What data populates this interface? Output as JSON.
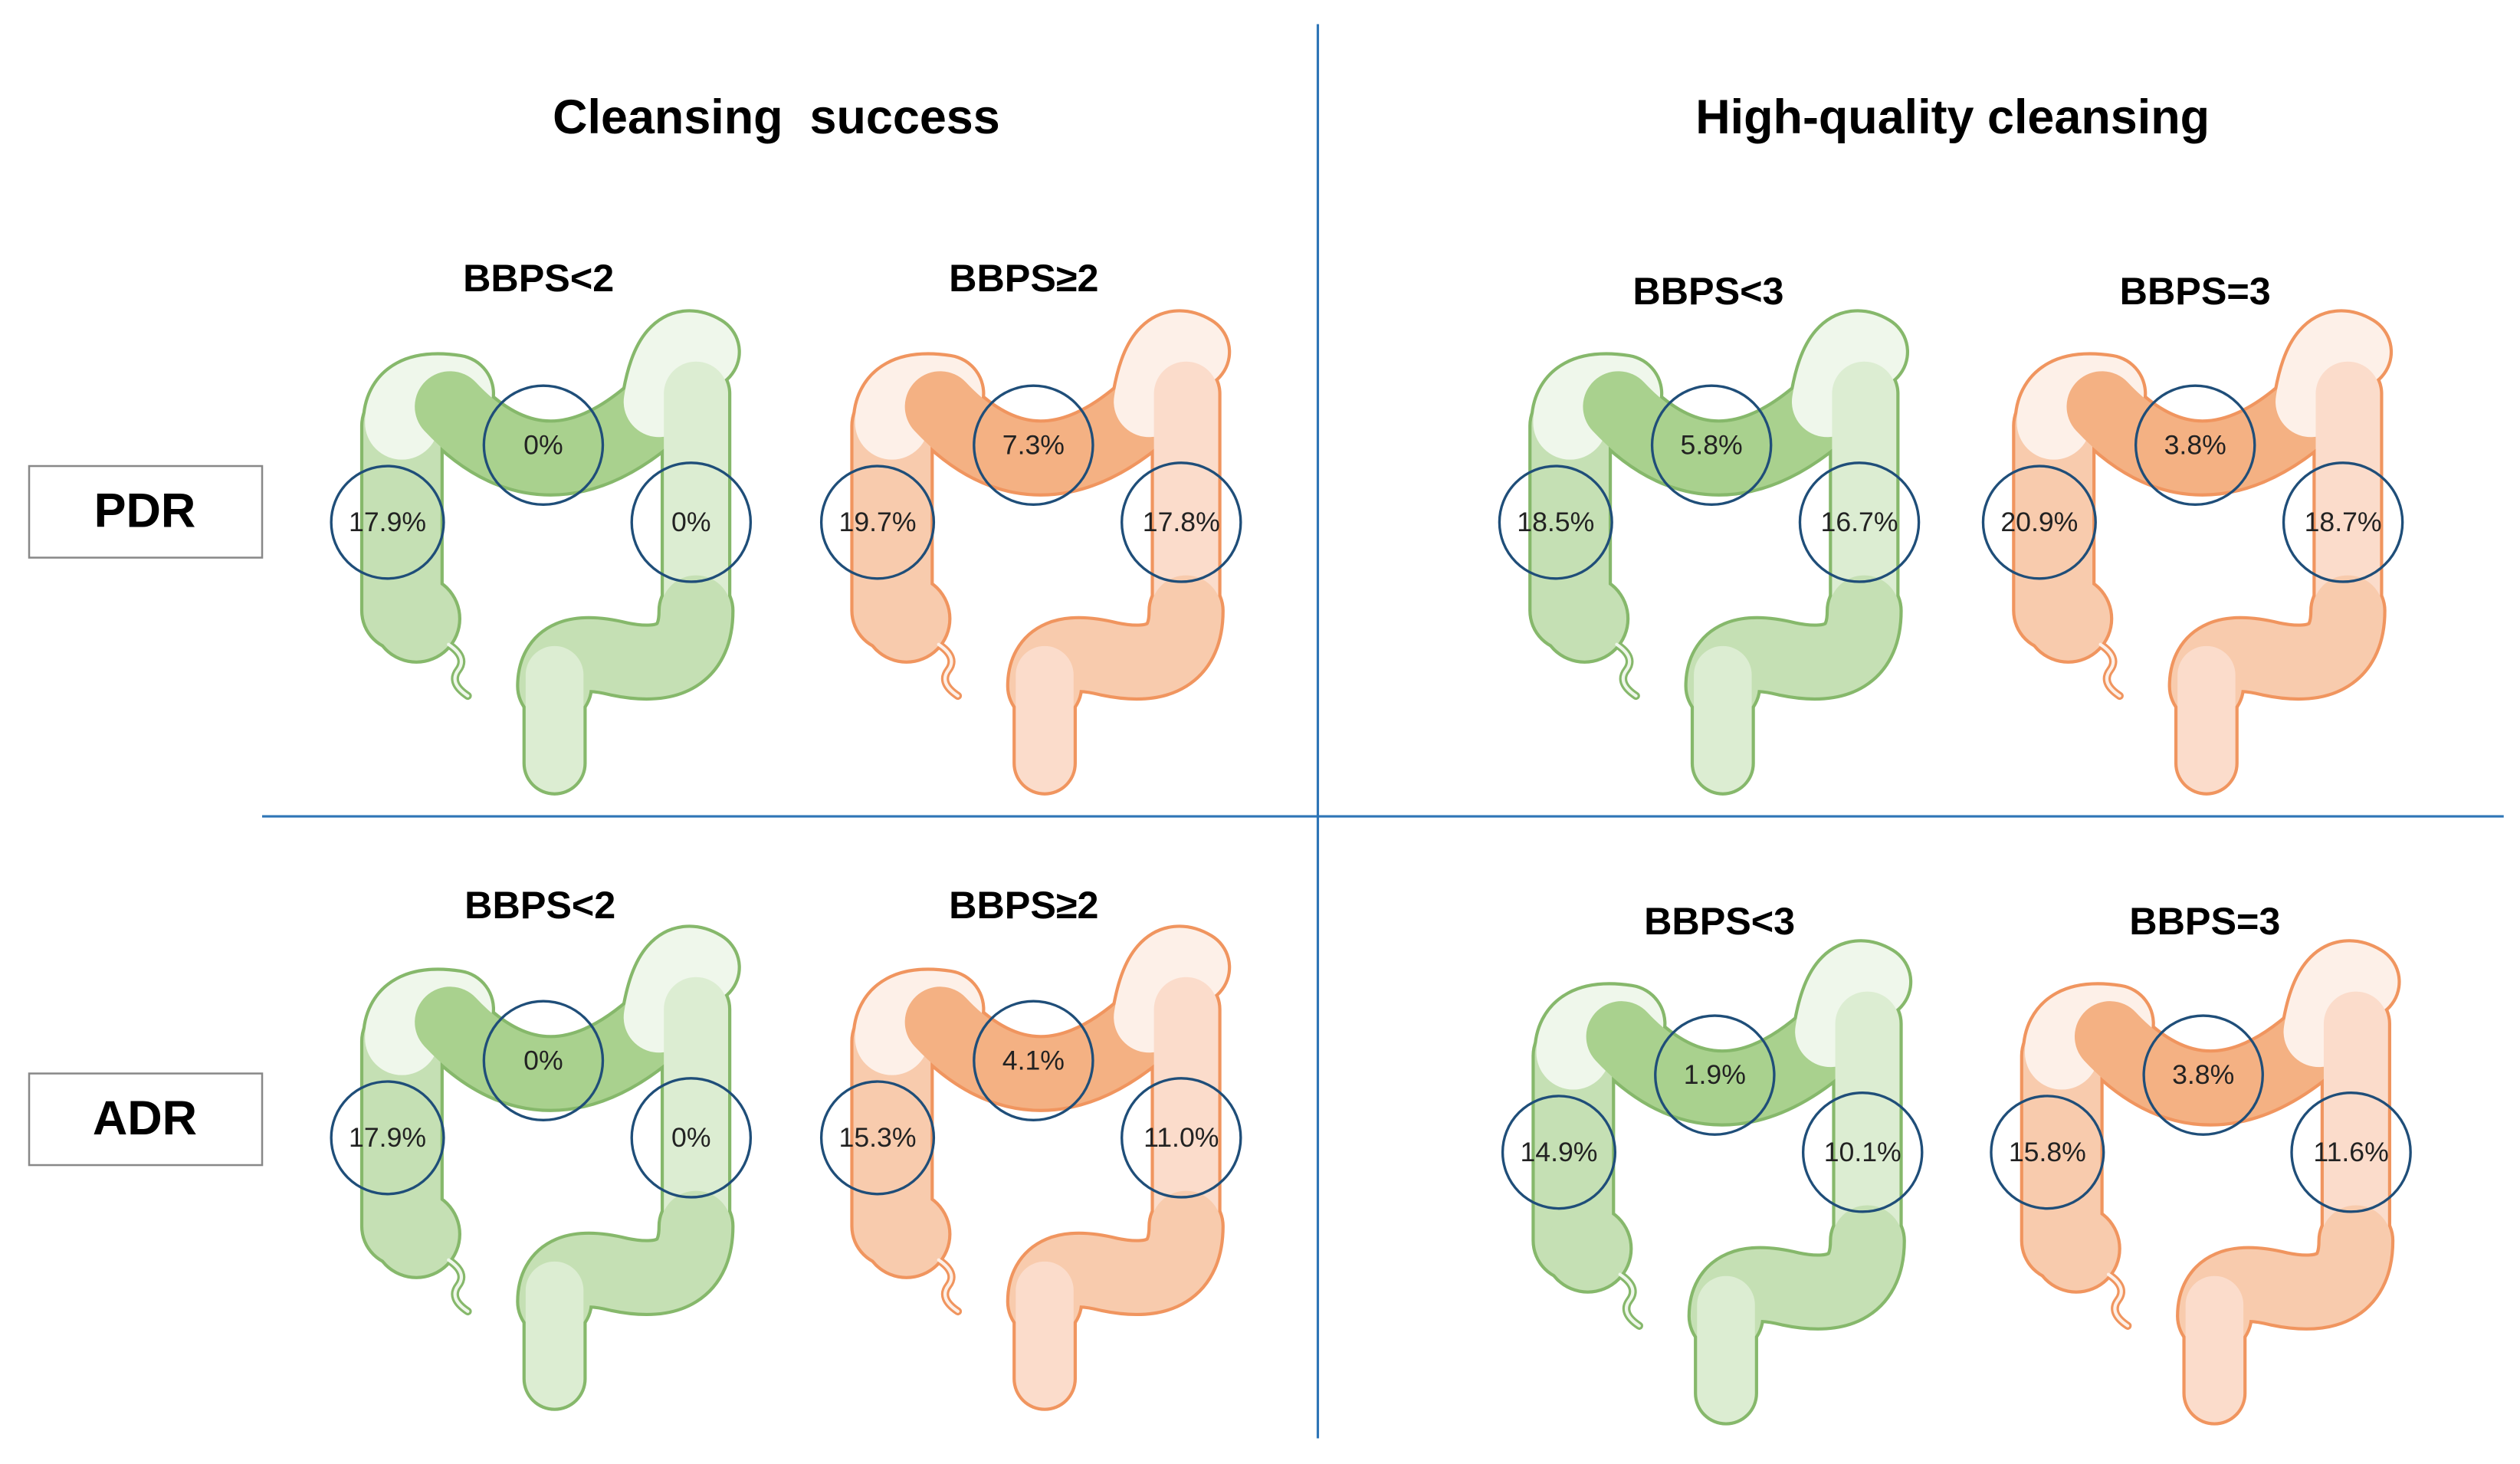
{
  "columns": [
    {
      "title": "Cleansing  success"
    },
    {
      "title": "High-quality cleansing"
    }
  ],
  "rows": [
    {
      "label": "PDR",
      "panels": [
        {
          "label": "BBPS<2",
          "values": [
            "17.9%",
            "0%",
            "0%"
          ]
        },
        {
          "label": "BBPS≥2",
          "values": [
            "19.7%",
            "7.3%",
            "17.8%"
          ]
        },
        {
          "label": "BBPS<3",
          "values": [
            "18.5%",
            "5.8%",
            "16.7%"
          ]
        },
        {
          "label": "BBPS=3",
          "values": [
            "20.9%",
            "3.8%",
            "18.7%"
          ]
        }
      ]
    },
    {
      "label": "ADR",
      "panels": [
        {
          "label": "BBPS<2",
          "values": [
            "17.9%",
            "0%",
            "0%"
          ]
        },
        {
          "label": "BBPS≥2",
          "values": [
            "15.3%",
            "4.1%",
            "11.0%"
          ]
        },
        {
          "label": "BBPS<3",
          "values": [
            "14.9%",
            "1.9%",
            "10.1%"
          ]
        },
        {
          "label": "BBPS=3",
          "values": [
            "15.8%",
            "3.8%",
            "11.6%"
          ]
        }
      ]
    }
  ]
}
